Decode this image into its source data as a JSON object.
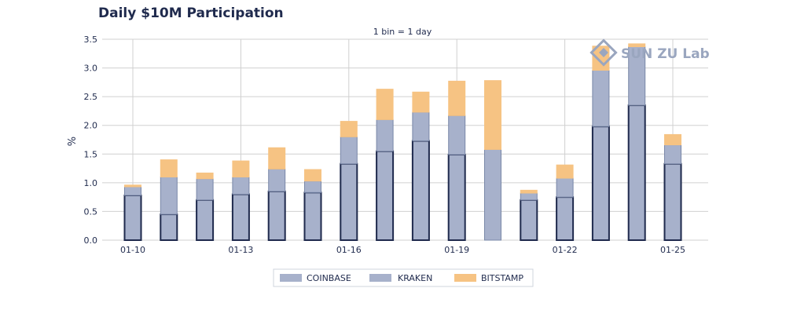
{
  "title": "Daily $10M Participation",
  "watermark": "SUN ZU Lab",
  "chart_data": {
    "type": "bar",
    "stacked": true,
    "subtitle": "1 bin = 1 day",
    "ylabel": "%",
    "xlabel": "",
    "ylim": [
      0,
      3.5
    ],
    "yticks": [
      "0.0",
      "0.5",
      "1.0",
      "1.5",
      "2.0",
      "2.5",
      "3.0",
      "3.5"
    ],
    "grid": true,
    "categories": [
      "01-10",
      "01-11",
      "01-12",
      "01-13",
      "01-14",
      "01-15",
      "01-16",
      "01-17",
      "01-18",
      "01-19",
      "01-20",
      "01-21",
      "01-22",
      "01-23",
      "01-24",
      "01-25"
    ],
    "xtick_labels": [
      "01-10",
      "01-13",
      "01-16",
      "01-19",
      "01-22",
      "01-25"
    ],
    "series": [
      {
        "name": "COINBASE",
        "color": "#a7b1cb",
        "outline": "#1f2a4d",
        "values": [
          0.78,
          0.45,
          0.7,
          0.8,
          0.85,
          0.83,
          1.33,
          1.55,
          1.73,
          1.49,
          0.0,
          0.7,
          0.75,
          1.98,
          2.35,
          1.33
        ]
      },
      {
        "name": "KRAKEN",
        "color": "#a7b1cb",
        "outline": "#7a88a8",
        "values": [
          0.15,
          0.65,
          0.37,
          0.3,
          0.39,
          0.2,
          0.47,
          0.55,
          0.5,
          0.68,
          1.58,
          0.12,
          0.33,
          0.98,
          1.02,
          0.33
        ]
      },
      {
        "name": "BITSTAMP",
        "color": "#f6c383",
        "outline": "#f6c383",
        "values": [
          0.03,
          0.3,
          0.1,
          0.28,
          0.37,
          0.2,
          0.27,
          0.53,
          0.35,
          0.6,
          1.2,
          0.05,
          0.23,
          0.42,
          0.05,
          0.18
        ]
      }
    ],
    "legend_position": "bottom-center"
  }
}
